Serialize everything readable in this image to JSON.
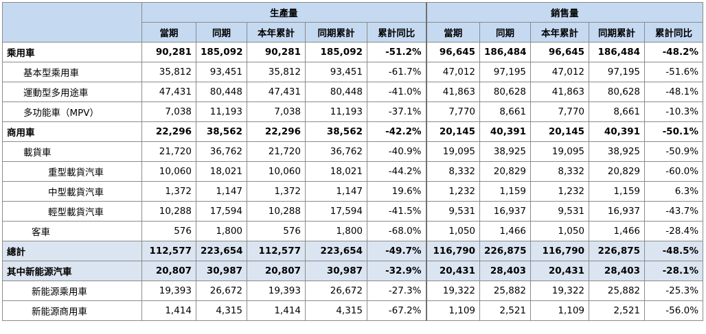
{
  "header": {
    "group_production": "生產量",
    "group_sales": "銷售量",
    "columns": [
      "當期",
      "同期",
      "本年累計",
      "同期累計",
      "累計同比",
      "當期",
      "同期",
      "本年累計",
      "同期累計",
      "累計同比"
    ]
  },
  "rows": [
    {
      "label": "乘用車",
      "style": "bold",
      "indent": 0,
      "values": [
        "90,281",
        "185,092",
        "90,281",
        "185,092",
        "-51.2%",
        "96,645",
        "186,484",
        "96,645",
        "186,484",
        "-48.2%"
      ]
    },
    {
      "label": "基本型乘用車",
      "style": "",
      "indent": 1,
      "values": [
        "35,812",
        "93,451",
        "35,812",
        "93,451",
        "-61.7%",
        "47,012",
        "97,195",
        "47,012",
        "97,195",
        "-51.6%"
      ]
    },
    {
      "label": "運動型多用途車",
      "style": "",
      "indent": 1,
      "values": [
        "47,431",
        "80,448",
        "47,431",
        "80,448",
        "-41.0%",
        "41,863",
        "80,628",
        "41,863",
        "80,628",
        "-48.1%"
      ]
    },
    {
      "label": "多功能車（MPV）",
      "style": "",
      "indent": 1,
      "values": [
        "7,038",
        "11,193",
        "7,038",
        "11,193",
        "-37.1%",
        "7,770",
        "8,661",
        "7,770",
        "8,661",
        "-10.3%"
      ]
    },
    {
      "label": "商用車",
      "style": "bold",
      "indent": 0,
      "values": [
        "22,296",
        "38,562",
        "22,296",
        "38,562",
        "-42.2%",
        "20,145",
        "40,391",
        "20,145",
        "40,391",
        "-50.1%"
      ]
    },
    {
      "label": "載貨車",
      "style": "",
      "indent": 1,
      "values": [
        "21,720",
        "36,762",
        "21,720",
        "36,762",
        "-40.9%",
        "19,095",
        "38,925",
        "19,095",
        "38,925",
        "-50.9%"
      ]
    },
    {
      "label": "重型載貨汽車",
      "style": "",
      "indent": 2,
      "values": [
        "10,060",
        "18,021",
        "10,060",
        "18,021",
        "-44.2%",
        "8,332",
        "20,829",
        "8,332",
        "20,829",
        "-60.0%"
      ]
    },
    {
      "label": "中型載貨汽車",
      "style": "",
      "indent": 2,
      "values": [
        "1,372",
        "1,147",
        "1,372",
        "1,147",
        "19.6%",
        "1,232",
        "1,159",
        "1,232",
        "1,159",
        "6.3%"
      ]
    },
    {
      "label": "輕型載貨汽車",
      "style": "",
      "indent": 2,
      "values": [
        "10,288",
        "17,594",
        "10,288",
        "17,594",
        "-41.5%",
        "9,531",
        "16,937",
        "9,531",
        "16,937",
        "-43.7%"
      ]
    },
    {
      "label": "客車",
      "style": "",
      "indent": 3,
      "values": [
        "576",
        "1,800",
        "576",
        "1,800",
        "-68.0%",
        "1,050",
        "1,466",
        "1,050",
        "1,466",
        "-28.4%"
      ]
    },
    {
      "label": "總計",
      "style": "hl",
      "indent": 0,
      "values": [
        "112,577",
        "223,654",
        "112,577",
        "223,654",
        "-49.7%",
        "116,790",
        "226,875",
        "116,790",
        "226,875",
        "-48.5%"
      ]
    },
    {
      "label": "其中新能源汽車",
      "style": "hl",
      "indent": 0,
      "values": [
        "20,807",
        "30,987",
        "20,807",
        "30,987",
        "-32.9%",
        "20,431",
        "28,403",
        "20,431",
        "28,403",
        "-28.1%"
      ]
    },
    {
      "label": "新能源乘用車",
      "style": "",
      "indent": 3,
      "values": [
        "19,393",
        "26,672",
        "19,393",
        "26,672",
        "-27.3%",
        "19,322",
        "25,882",
        "19,322",
        "25,882",
        "-25.3%"
      ]
    },
    {
      "label": "新能源商用車",
      "style": "",
      "indent": 3,
      "values": [
        "1,414",
        "4,315",
        "1,414",
        "4,315",
        "-67.2%",
        "1,109",
        "2,521",
        "1,109",
        "2,521",
        "-56.0%"
      ]
    }
  ]
}
